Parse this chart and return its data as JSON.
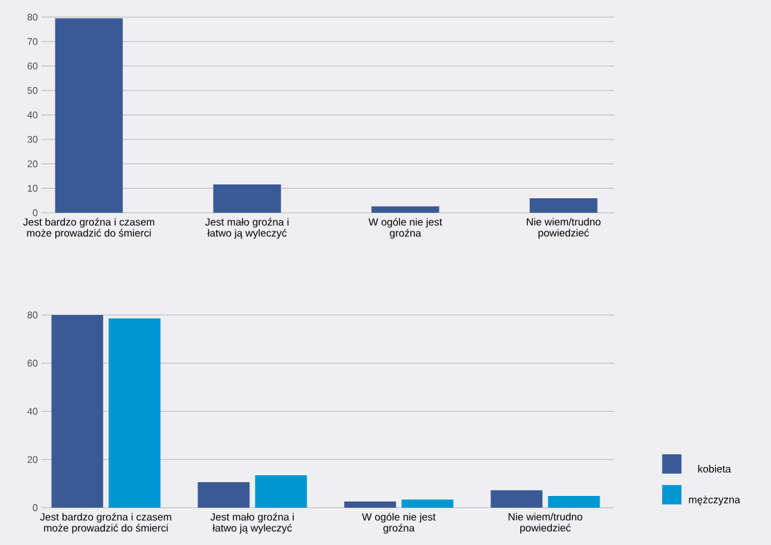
{
  "chart_data": [
    {
      "type": "bar",
      "categories": [
        "Jest bardzo groźna i czasem może prowadzić do śmierci",
        "Jest mało groźna i łatwo ją wyleczyć",
        "W ogóle nie jest groźna",
        "Nie wiem/trudno powiedzieć"
      ],
      "series": [
        {
          "color": "#3a5a96",
          "values": [
            79.5,
            11.6,
            2.6,
            5.9
          ]
        }
      ],
      "ylim": [
        0,
        80
      ],
      "yticks": [
        0,
        10,
        20,
        30,
        40,
        50,
        60,
        70,
        80
      ],
      "grid": "y",
      "legend": false
    },
    {
      "type": "bar",
      "categories": [
        "Jest bardzo groźna i czasem może prowadzić do śmierci",
        "Jest mało groźna i łatwo ją wyleczyć",
        "W ogóle nie jest groźna",
        "Nie wiem/trudno powiedzieć"
      ],
      "series": [
        {
          "name": "kobieta",
          "color": "#3a5a96",
          "values": [
            80,
            10.6,
            2.6,
            7.2
          ]
        },
        {
          "name": "mężczyzna",
          "color": "#0095d3",
          "values": [
            78.6,
            13.5,
            3.4,
            4.9
          ]
        }
      ],
      "ylim": [
        0,
        80
      ],
      "yticks": [
        0,
        20,
        40,
        60,
        80
      ],
      "grid": "y",
      "legend": "bottom right"
    }
  ]
}
